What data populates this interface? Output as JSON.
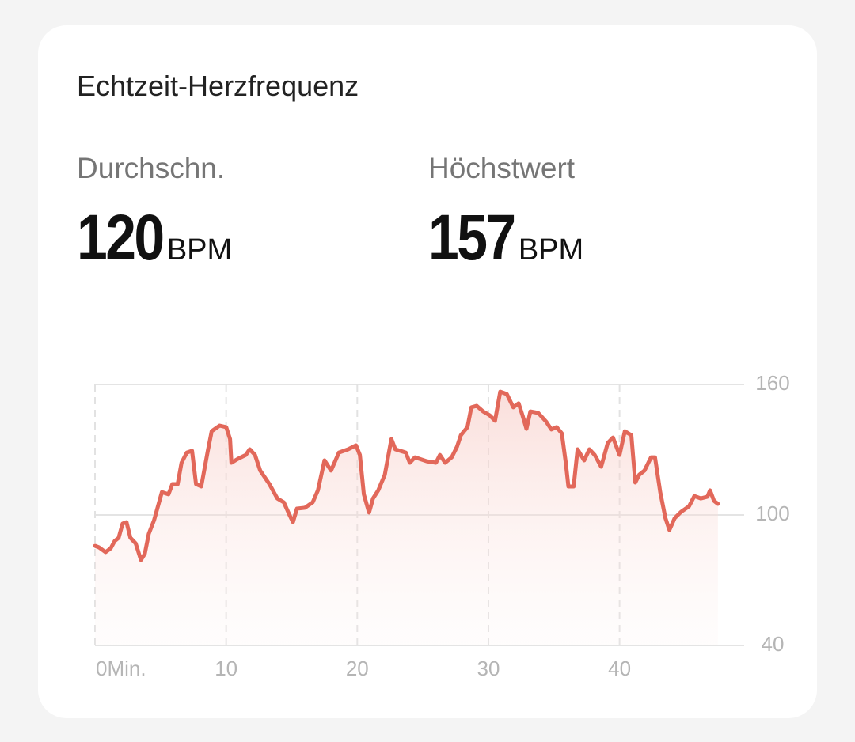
{
  "header": {
    "title": "Echtzeit-Herzfrequenz"
  },
  "stats": [
    {
      "label": "Durchschn.",
      "value": "120",
      "unit": "BPM"
    },
    {
      "label": "Höchstwert",
      "value": "157",
      "unit": "BPM"
    }
  ],
  "chart_data": {
    "type": "line",
    "x": [
      0,
      0.3,
      0.8,
      1.2,
      1.5,
      1.8,
      2.1,
      2.4,
      2.7,
      3.1,
      3.5,
      3.8,
      4.1,
      4.5,
      5.1,
      5.6,
      5.9,
      6.3,
      6.6,
      7.0,
      7.4,
      7.7,
      8.1,
      8.6,
      8.9,
      9.5,
      10.0,
      10.3,
      10.4,
      10.9,
      11.5,
      11.8,
      12.2,
      12.6,
      13.3,
      13.9,
      14.4,
      14.8,
      15.1,
      15.4,
      16.0,
      16.6,
      17.0,
      17.5,
      18.0,
      18.6,
      19.3,
      19.9,
      20.2,
      20.5,
      20.9,
      21.2,
      21.6,
      22.1,
      22.6,
      22.9,
      23.7,
      24.0,
      24.4,
      25.3,
      26.0,
      26.3,
      26.7,
      27.2,
      27.6,
      27.9,
      28.4,
      28.7,
      29.1,
      29.6,
      30.1,
      30.5,
      30.9,
      31.4,
      31.9,
      32.3,
      32.6,
      32.9,
      33.2,
      33.8,
      34.4,
      34.8,
      35.2,
      35.6,
      35.9,
      36.1,
      36.5,
      36.8,
      37.3,
      37.7,
      38.1,
      38.6,
      39.1,
      39.5,
      40.0,
      40.4,
      40.9,
      41.2,
      41.5,
      41.9,
      42.4,
      42.7,
      43.1,
      43.5,
      43.8,
      44.2,
      44.7,
      45.3,
      45.7,
      46.2,
      46.7,
      46.9,
      47.2,
      47.5
    ],
    "series": [
      {
        "color": "#e2685a",
        "values": [
          85.8,
          85.1,
          82.9,
          84.7,
          88,
          89.5,
          96,
          96.7,
          89.5,
          86.9,
          79.3,
          82.2,
          91.3,
          97.5,
          110.5,
          109.5,
          114.2,
          114.2,
          124,
          128.7,
          129.5,
          114.2,
          113.1,
          129.5,
          138.5,
          141.1,
          140.4,
          134.9,
          124,
          125.8,
          127.6,
          130.2,
          127.6,
          120.4,
          114.2,
          107.6,
          105.8,
          100.4,
          96.7,
          102.9,
          103.3,
          105.8,
          111.3,
          125.1,
          120.4,
          128.7,
          130.2,
          132,
          127.6,
          109.5,
          101.1,
          107.6,
          111.3,
          118.5,
          134.9,
          130.2,
          128.7,
          124,
          126.5,
          124.7,
          124,
          127.6,
          124,
          126.5,
          131.3,
          136.7,
          140.4,
          149.5,
          150.2,
          147.6,
          145.8,
          143.3,
          156.7,
          155.6,
          149.5,
          151.3,
          145.8,
          139.6,
          147.6,
          146.9,
          142.9,
          139.3,
          140.4,
          137.5,
          124,
          113.1,
          113.1,
          130.2,
          125.1,
          130.2,
          127.6,
          122.2,
          133.1,
          135.6,
          127.6,
          138.5,
          136.7,
          114.9,
          118.5,
          120.4,
          126.5,
          126.5,
          110.5,
          98.5,
          93.1,
          98.5,
          101.5,
          104,
          108.7,
          107.6,
          108.4,
          111.3,
          106.5,
          105.1
        ]
      }
    ],
    "xlim": [
      0,
      49.5
    ],
    "ylim": [
      40,
      160
    ],
    "xticks": [
      {
        "value": 0,
        "label": "0Min."
      },
      10,
      20,
      30,
      40
    ],
    "yticks": [
      40,
      100,
      160
    ]
  }
}
